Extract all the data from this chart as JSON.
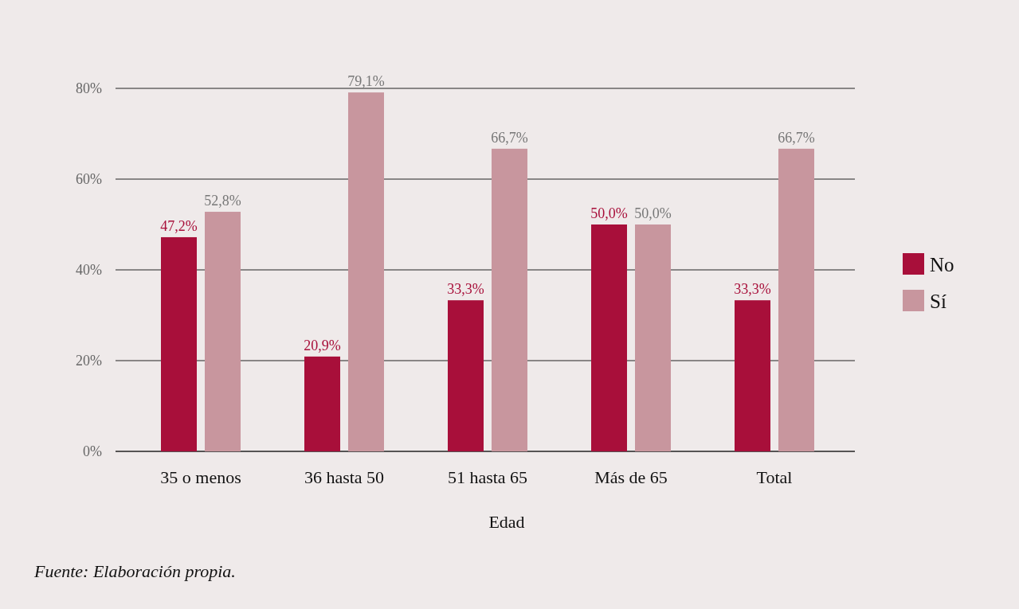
{
  "chart_data": {
    "type": "bar",
    "xlabel": "Edad",
    "categories": [
      "35 o menos",
      "36 hasta 50",
      "51 hasta 65",
      "Más de 65",
      "Total"
    ],
    "series": [
      {
        "name": "No",
        "color": "#a80f3a",
        "values": [
          47.2,
          20.9,
          33.3,
          50.0,
          33.3
        ],
        "value_labels": [
          "47,2%",
          "20,9%",
          "33,3%",
          "50,0%",
          "33,3%"
        ]
      },
      {
        "name": "Sí",
        "color": "#c8969e",
        "values": [
          52.8,
          79.1,
          66.7,
          50.0,
          66.7
        ],
        "value_labels": [
          "52,8%",
          "79,1%",
          "66,7%",
          "50,0%",
          "66,7%"
        ]
      }
    ],
    "ylim": [
      0,
      80
    ],
    "yticks": [
      {
        "value": 0,
        "label": "0%"
      },
      {
        "value": 20,
        "label": "20%"
      },
      {
        "value": 40,
        "label": "40%"
      },
      {
        "value": 60,
        "label": "60%"
      },
      {
        "value": 80,
        "label": "80%"
      }
    ],
    "grid": "y",
    "legend": "right",
    "annotations": [
      "Fuente: Elaboración propia."
    ]
  }
}
